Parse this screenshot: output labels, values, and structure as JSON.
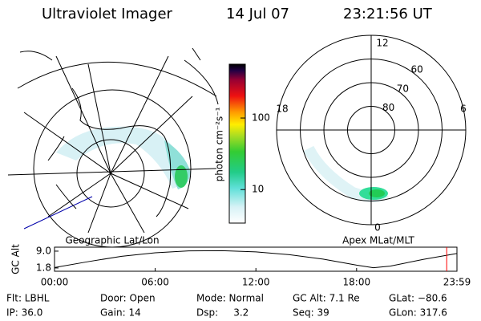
{
  "header": {
    "title": "Ultraviolet Imager",
    "date": "14 Jul 07",
    "time": "23:21:56 UT"
  },
  "left_panel": {
    "label": "Geographic Lat/Lon"
  },
  "right_panel": {
    "label": "Apex MLat/MLT",
    "mlt_labels": [
      "12",
      "18",
      "6",
      "0"
    ],
    "mlat_labels": [
      80,
      70,
      60
    ]
  },
  "colorbar": {
    "label": "photon cm⁻²s⁻¹",
    "scale": "log",
    "lim": [
      3.4,
      565
    ],
    "ticks": [
      10,
      100
    ]
  },
  "altitude_plot": {
    "ylabel": "GC Alt",
    "x": [
      0,
      2,
      4,
      6,
      8,
      10,
      12,
      14,
      16,
      18,
      19,
      20,
      22,
      23.98
    ],
    "values": [
      2.0,
      4.5,
      6.8,
      8.3,
      9.1,
      9.2,
      8.7,
      7.5,
      5.6,
      3.0,
      1.9,
      2.6,
      5.5,
      8.0
    ],
    "color": "#000000",
    "xlim": [
      0,
      23.98
    ],
    "ylim": [
      0.4,
      10.7
    ],
    "xticks": [
      {
        "value": 0,
        "label": "00:00"
      },
      {
        "value": 6,
        "label": "06:00"
      },
      {
        "value": 12,
        "label": "12:00"
      },
      {
        "value": 18,
        "label": "18:00"
      },
      {
        "value": 23.98,
        "label": "23:59"
      }
    ],
    "yticks": [
      {
        "value": 9,
        "label": "9.0"
      },
      {
        "value": 1.8,
        "label": "1.8"
      }
    ],
    "marker_time": 23.37,
    "marker_color": "#ff0000"
  },
  "info": [
    [
      "Flt: LBHL",
      "Door: Open",
      "Mode: Normal",
      "GC Alt: 7.1 Re",
      "GLat: −80.6"
    ],
    [
      "IP: 36.0",
      "Gain: 14",
      "Dsp:     3.2",
      "Seq: 39",
      "GLon: 317.6"
    ]
  ]
}
